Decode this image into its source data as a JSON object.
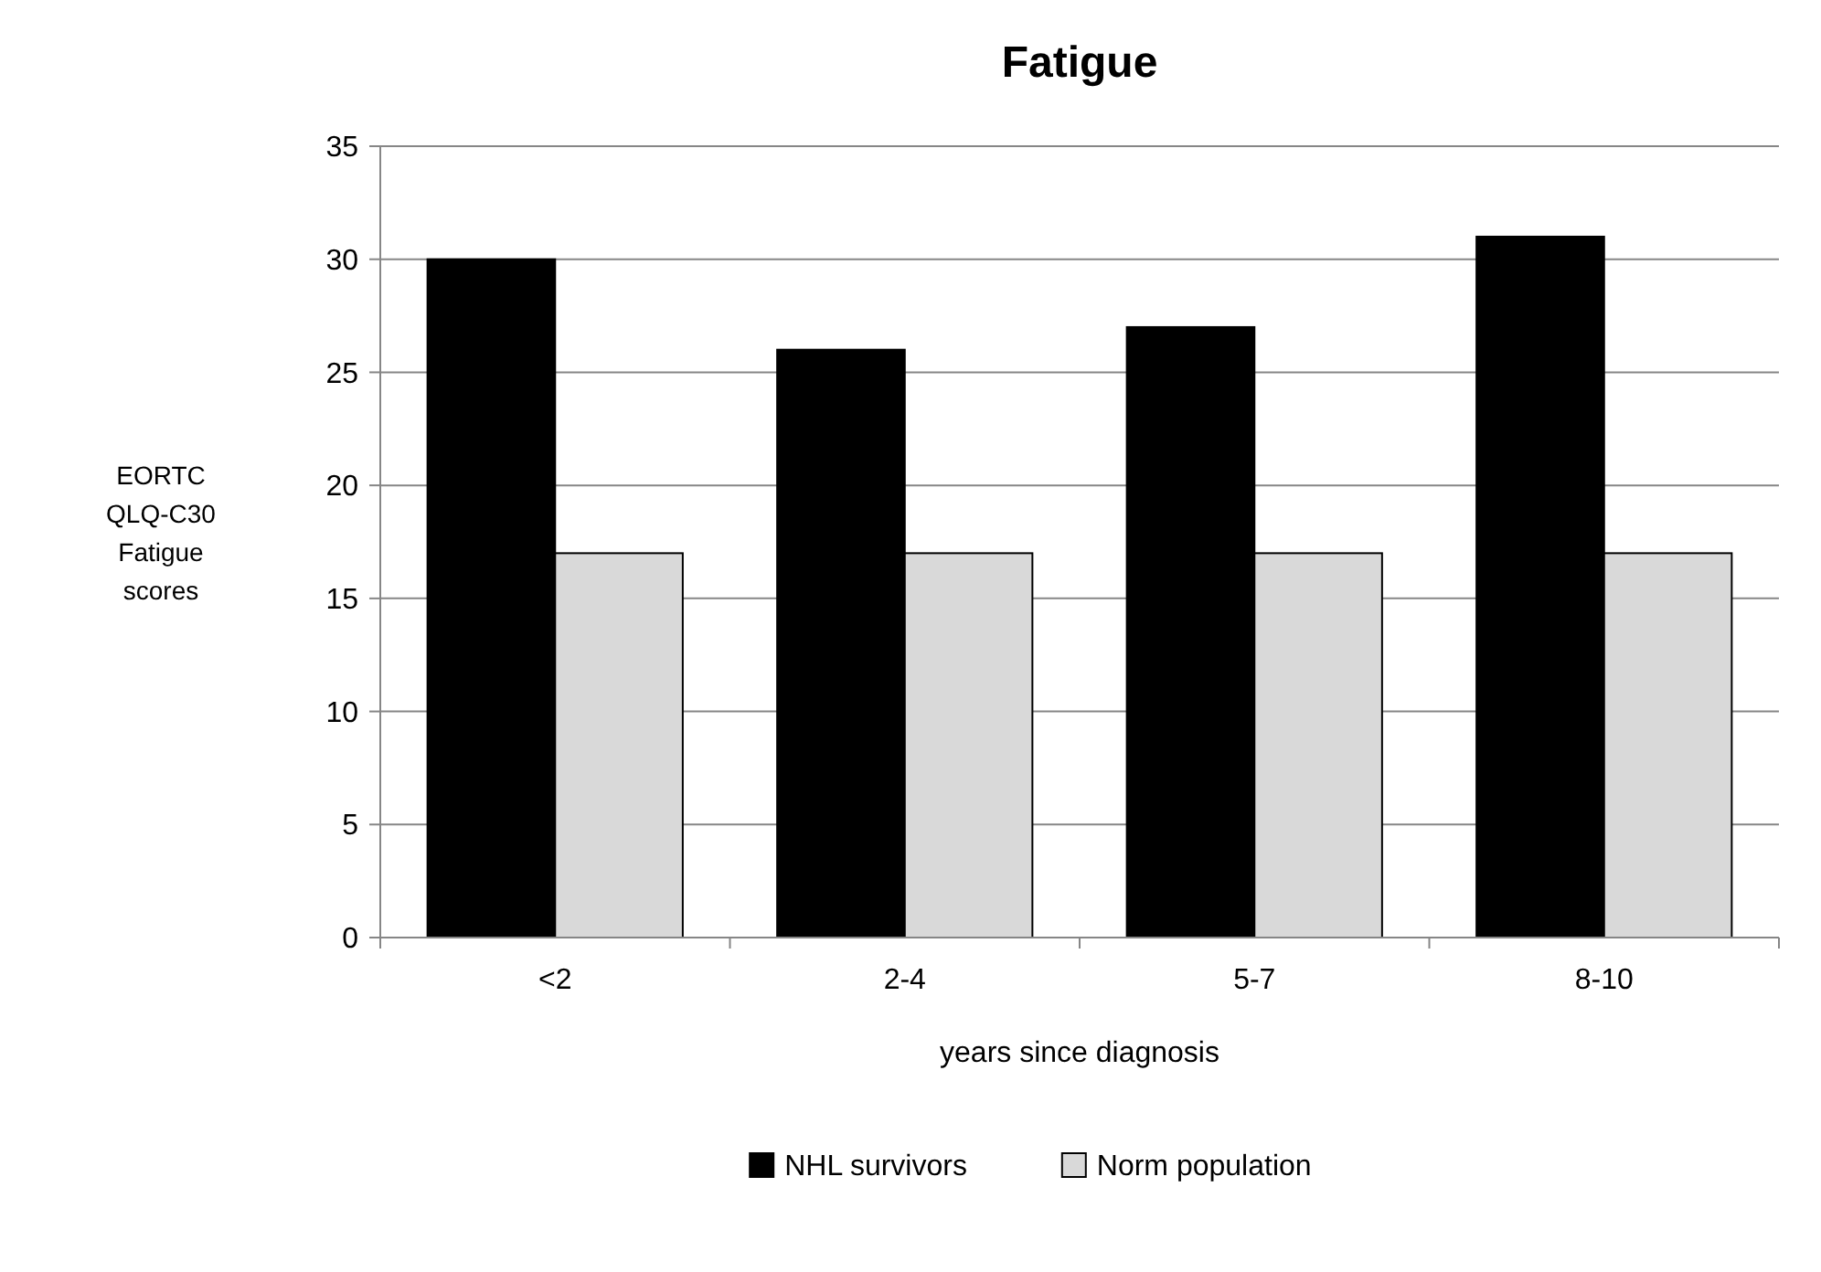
{
  "chart_data": {
    "type": "bar",
    "title": "Fatigue",
    "xlabel": "years since diagnosis",
    "ylabel": "EORTC QLQ-C30 Fatigue scores",
    "categories": [
      "<2",
      "2-4",
      "5-7",
      "8-10"
    ],
    "series": [
      {
        "name": "NHL survivors",
        "color": "#000000",
        "values": [
          30,
          26,
          27,
          31
        ]
      },
      {
        "name": "Norm population",
        "color": "#d9d9d9",
        "values": [
          17,
          17,
          17,
          17
        ]
      }
    ],
    "ylim": [
      0,
      35
    ],
    "yticks": [
      0,
      5,
      10,
      15,
      20,
      25,
      30,
      35
    ],
    "grid": "y",
    "legend": "bottom"
  }
}
